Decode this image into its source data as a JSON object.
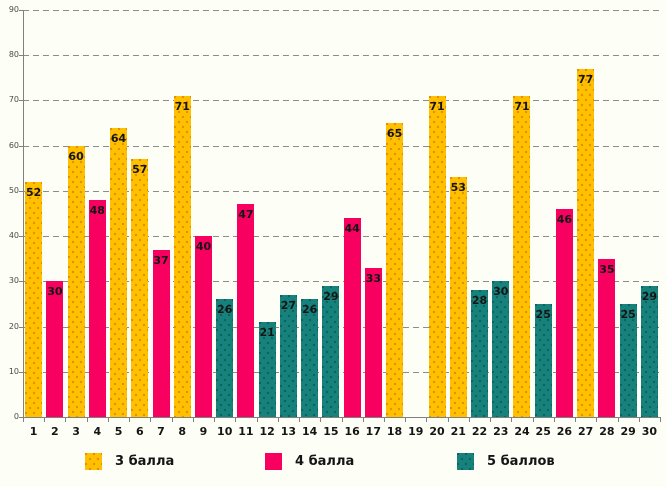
{
  "chart_data": {
    "type": "bar",
    "title": "",
    "xlabel": "",
    "ylabel": "",
    "categories": [
      "1",
      "2",
      "3",
      "4",
      "5",
      "6",
      "7",
      "8",
      "9",
      "10",
      "11",
      "12",
      "13",
      "14",
      "15",
      "16",
      "17",
      "18",
      "19",
      "20",
      "21",
      "22",
      "23",
      "24",
      "25",
      "26",
      "27",
      "28",
      "29",
      "30"
    ],
    "series": [
      {
        "name": "3 балла",
        "color": "#FFC000",
        "dot_color": "#E08A00",
        "pattern": "dots",
        "values": [
          52,
          null,
          60,
          null,
          64,
          57,
          null,
          71,
          null,
          null,
          null,
          null,
          null,
          null,
          null,
          null,
          null,
          65,
          null,
          71,
          53,
          null,
          null,
          71,
          null,
          null,
          77,
          null,
          null,
          null
        ]
      },
      {
        "name": "4 балла",
        "color": "#F7005F",
        "dot_color": "#F7005F",
        "pattern": "solid",
        "values": [
          null,
          30,
          null,
          48,
          null,
          null,
          37,
          null,
          40,
          null,
          47,
          null,
          null,
          null,
          null,
          44,
          33,
          null,
          null,
          null,
          null,
          null,
          null,
          null,
          null,
          46,
          null,
          35,
          null,
          null
        ]
      },
      {
        "name": "5 баллов",
        "color": "#17827B",
        "dot_color": "#0C5F5C",
        "pattern": "dots",
        "values": [
          null,
          null,
          null,
          null,
          null,
          null,
          null,
          null,
          null,
          26,
          null,
          21,
          27,
          26,
          29,
          null,
          null,
          null,
          null,
          null,
          null,
          28,
          30,
          null,
          25,
          null,
          null,
          null,
          25,
          29
        ]
      }
    ],
    "ylim": [
      0,
      90
    ],
    "yticks": [
      0,
      10,
      20,
      30,
      40,
      50,
      60,
      70,
      80,
      90
    ],
    "grid": "horizontal-dashed",
    "legend_position": "bottom",
    "value_labels": true
  }
}
